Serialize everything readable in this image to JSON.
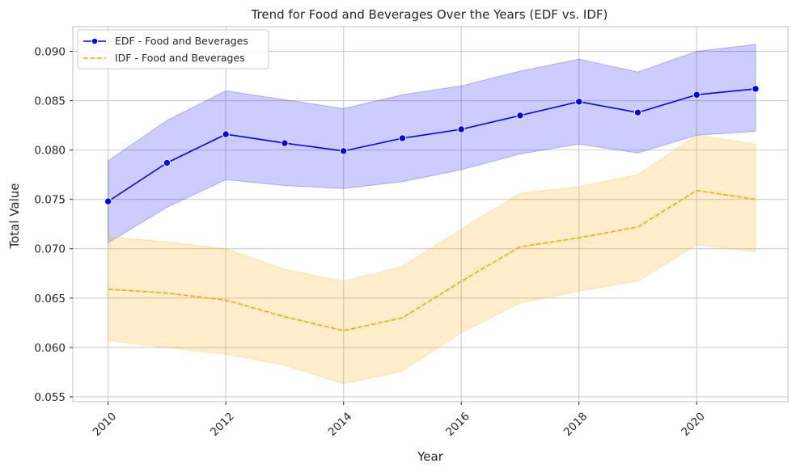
{
  "chart_data": {
    "type": "line",
    "title": "Trend for Food and Beverages Over the Years (EDF vs. IDF)",
    "xlabel": "Year",
    "ylabel": "Total Value",
    "x": [
      2010,
      2011,
      2012,
      2013,
      2014,
      2015,
      2016,
      2017,
      2018,
      2019,
      2020,
      2021
    ],
    "xlim": [
      2009.4,
      2021.55
    ],
    "ylim": [
      0.0545,
      0.0925
    ],
    "xticks": [
      2010,
      2012,
      2014,
      2016,
      2018,
      2020
    ],
    "xtick_labels": [
      "2010",
      "2012",
      "2014",
      "2016",
      "2018",
      "2020"
    ],
    "yticks": [
      0.055,
      0.06,
      0.065,
      0.07,
      0.075,
      0.08,
      0.085,
      0.09
    ],
    "ytick_labels": [
      "0.055",
      "0.060",
      "0.065",
      "0.070",
      "0.075",
      "0.080",
      "0.085",
      "0.090"
    ],
    "grid": true,
    "legend_position": "top-left",
    "series": [
      {
        "name": "EDF - Food and Beverages",
        "color": "#0000ff",
        "band_color": "#0000ff",
        "line_style": "solid",
        "marker": "circle",
        "values": [
          0.0748,
          0.0787,
          0.0816,
          0.0807,
          0.0799,
          0.0812,
          0.0821,
          0.0835,
          0.0849,
          0.0838,
          0.0856,
          0.0862
        ],
        "ci_lower": [
          0.0706,
          0.0742,
          0.077,
          0.0764,
          0.0761,
          0.0768,
          0.078,
          0.0796,
          0.0806,
          0.0797,
          0.0815,
          0.0819
        ],
        "ci_upper": [
          0.0789,
          0.083,
          0.086,
          0.0851,
          0.0842,
          0.0856,
          0.0865,
          0.088,
          0.0892,
          0.0879,
          0.09,
          0.0907
        ]
      },
      {
        "name": "IDF - Food and Beverages",
        "color": "#ffa500",
        "band_color": "#ffa500",
        "line_style": "dashed",
        "marker": "none",
        "values": [
          0.0659,
          0.0655,
          0.0648,
          0.0631,
          0.0617,
          0.063,
          0.0667,
          0.0702,
          0.0711,
          0.0722,
          0.0759,
          0.075
        ],
        "ci_lower": [
          0.0607,
          0.06,
          0.0593,
          0.0582,
          0.0563,
          0.0576,
          0.0615,
          0.0645,
          0.0657,
          0.0667,
          0.0704,
          0.0697
        ],
        "ci_upper": [
          0.0712,
          0.0707,
          0.07,
          0.0679,
          0.0667,
          0.0682,
          0.072,
          0.0756,
          0.0763,
          0.0775,
          0.0815,
          0.0806
        ]
      }
    ]
  }
}
